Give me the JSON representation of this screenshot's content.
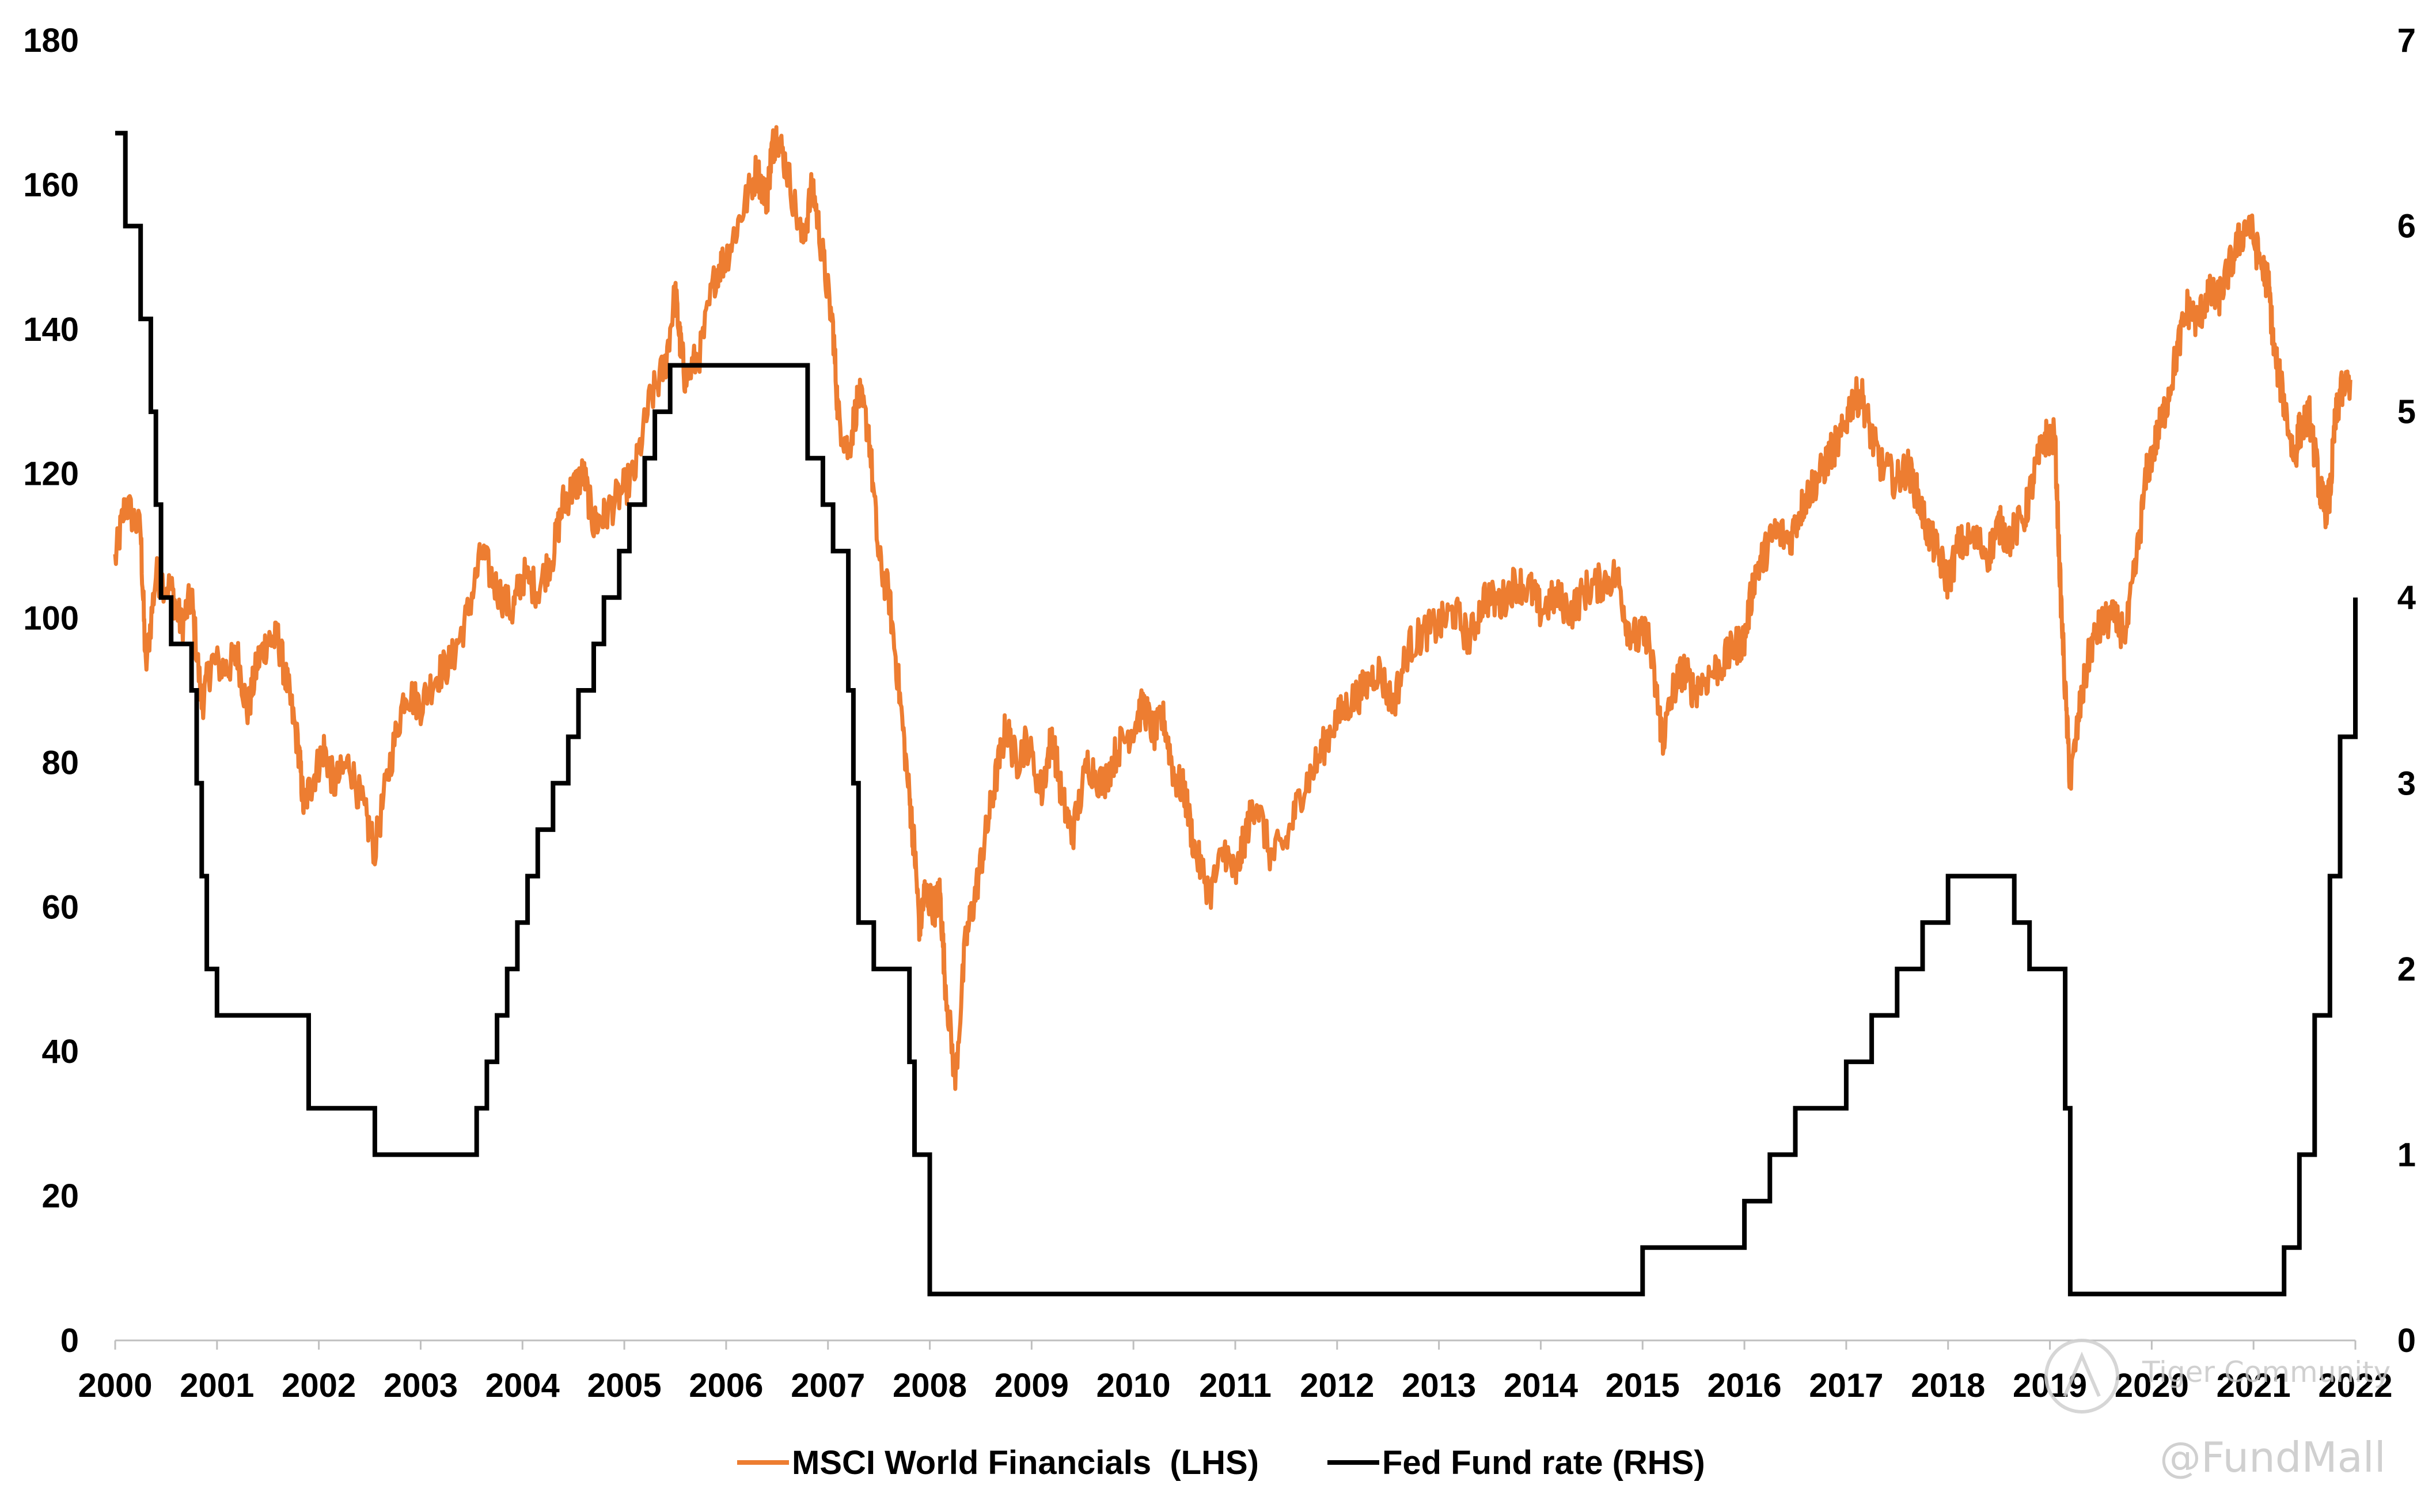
{
  "chart_data": {
    "type": "line",
    "title": "",
    "xlabel": "",
    "ylabel_left": "",
    "ylabel_right": "",
    "x_ticks": [
      "2000",
      "2001",
      "2002",
      "2003",
      "2004",
      "2005",
      "2006",
      "2007",
      "2008",
      "2009",
      "2010",
      "2011",
      "2012",
      "2013",
      "2014",
      "2015",
      "2016",
      "2017",
      "2018",
      "2019",
      "2020",
      "2021",
      "2022"
    ],
    "y_left_ticks": [
      0,
      20,
      40,
      60,
      80,
      100,
      120,
      140,
      160,
      180
    ],
    "y_right_ticks": [
      0,
      1,
      2,
      3,
      4,
      5,
      6,
      7
    ],
    "ylim_left": [
      0,
      180
    ],
    "ylim_right": [
      0,
      7
    ],
    "xlim": [
      2000,
      2022
    ],
    "series": [
      {
        "name": "MSCI World Financials  (LHS)",
        "axis": "left",
        "color": "#ED7D31",
        "points": [
          [
            2000.0,
            108
          ],
          [
            2000.1,
            116
          ],
          [
            2000.25,
            112
          ],
          [
            2000.3,
            93
          ],
          [
            2000.4,
            106
          ],
          [
            2000.55,
            104
          ],
          [
            2000.65,
            99
          ],
          [
            2000.75,
            103
          ],
          [
            2000.85,
            88
          ],
          [
            2000.95,
            94
          ],
          [
            2001.1,
            93
          ],
          [
            2001.2,
            95
          ],
          [
            2001.3,
            87
          ],
          [
            2001.4,
            94
          ],
          [
            2001.5,
            97
          ],
          [
            2001.6,
            97
          ],
          [
            2001.7,
            90
          ],
          [
            2001.8,
            82
          ],
          [
            2001.85,
            74
          ],
          [
            2001.95,
            78
          ],
          [
            2002.05,
            82
          ],
          [
            2002.15,
            77
          ],
          [
            2002.3,
            80
          ],
          [
            2002.45,
            73
          ],
          [
            2002.55,
            68
          ],
          [
            2002.7,
            80
          ],
          [
            2002.85,
            90
          ],
          [
            2003.0,
            88
          ],
          [
            2003.15,
            92
          ],
          [
            2003.3,
            94
          ],
          [
            2003.45,
            100
          ],
          [
            2003.6,
            109
          ],
          [
            2003.75,
            104
          ],
          [
            2003.9,
            101
          ],
          [
            2004.0,
            106
          ],
          [
            2004.15,
            104
          ],
          [
            2004.3,
            109
          ],
          [
            2004.4,
            116
          ],
          [
            2004.5,
            118
          ],
          [
            2004.6,
            120
          ],
          [
            2004.7,
            113
          ],
          [
            2004.8,
            114
          ],
          [
            2004.95,
            117
          ],
          [
            2005.1,
            120
          ],
          [
            2005.25,
            130
          ],
          [
            2005.4,
            135
          ],
          [
            2005.5,
            145
          ],
          [
            2005.55,
            138
          ],
          [
            2005.6,
            133
          ],
          [
            2005.75,
            137
          ],
          [
            2005.9,
            148
          ],
          [
            2006.0,
            150
          ],
          [
            2006.15,
            156
          ],
          [
            2006.3,
            162
          ],
          [
            2006.4,
            158
          ],
          [
            2006.45,
            165
          ],
          [
            2006.5,
            167
          ],
          [
            2006.6,
            162
          ],
          [
            2006.75,
            152
          ],
          [
            2006.85,
            160
          ],
          [
            2006.95,
            150
          ],
          [
            2007.05,
            140
          ],
          [
            2007.1,
            128
          ],
          [
            2007.2,
            123
          ],
          [
            2007.3,
            131
          ],
          [
            2007.4,
            126
          ],
          [
            2007.5,
            108
          ],
          [
            2007.6,
            103
          ],
          [
            2007.7,
            90
          ],
          [
            2007.8,
            75
          ],
          [
            2007.85,
            68
          ],
          [
            2007.9,
            57
          ],
          [
            2007.95,
            62
          ],
          [
            2008.05,
            60
          ],
          [
            2008.1,
            62
          ],
          [
            2008.15,
            50
          ],
          [
            2008.25,
            36
          ],
          [
            2008.35,
            55
          ],
          [
            2008.45,
            62
          ],
          [
            2008.55,
            70
          ],
          [
            2008.65,
            78
          ],
          [
            2008.75,
            85
          ],
          [
            2008.85,
            80
          ],
          [
            2008.95,
            83
          ],
          [
            2009.1,
            76
          ],
          [
            2009.2,
            84
          ],
          [
            2009.3,
            75
          ],
          [
            2009.4,
            70
          ],
          [
            2009.55,
            80
          ],
          [
            2009.7,
            77
          ],
          [
            2009.85,
            82
          ],
          [
            2010.0,
            85
          ],
          [
            2010.1,
            88
          ],
          [
            2010.2,
            84
          ],
          [
            2010.3,
            86
          ],
          [
            2010.4,
            78
          ],
          [
            2010.5,
            76
          ],
          [
            2010.6,
            68
          ],
          [
            2010.75,
            62
          ],
          [
            2010.9,
            68
          ],
          [
            2011.0,
            64
          ],
          [
            2011.1,
            70
          ],
          [
            2011.2,
            75
          ],
          [
            2011.35,
            67
          ],
          [
            2011.5,
            69
          ],
          [
            2011.65,
            76
          ],
          [
            2011.8,
            80
          ],
          [
            2011.95,
            85
          ],
          [
            2012.1,
            88
          ],
          [
            2012.25,
            90
          ],
          [
            2012.4,
            93
          ],
          [
            2012.55,
            88
          ],
          [
            2012.7,
            96
          ],
          [
            2012.85,
            98
          ],
          [
            2013.0,
            99
          ],
          [
            2013.15,
            101
          ],
          [
            2013.3,
            97
          ],
          [
            2013.45,
            103
          ],
          [
            2013.6,
            102
          ],
          [
            2013.75,
            105
          ],
          [
            2013.9,
            104
          ],
          [
            2014.0,
            101
          ],
          [
            2014.15,
            103
          ],
          [
            2014.3,
            101
          ],
          [
            2014.45,
            104
          ],
          [
            2014.6,
            105
          ],
          [
            2014.75,
            106
          ],
          [
            2014.85,
            99
          ],
          [
            2014.95,
            97
          ],
          [
            2015.05,
            98
          ],
          [
            2015.15,
            88
          ],
          [
            2015.2,
            83
          ],
          [
            2015.3,
            90
          ],
          [
            2015.4,
            93
          ],
          [
            2015.5,
            90
          ],
          [
            2015.65,
            92
          ],
          [
            2015.8,
            94
          ],
          [
            2015.9,
            96
          ],
          [
            2016.0,
            97
          ],
          [
            2016.1,
            106
          ],
          [
            2016.2,
            109
          ],
          [
            2016.3,
            112
          ],
          [
            2016.45,
            111
          ],
          [
            2016.55,
            115
          ],
          [
            2016.65,
            118
          ],
          [
            2016.75,
            120
          ],
          [
            2016.85,
            123
          ],
          [
            2016.95,
            125
          ],
          [
            2017.05,
            130
          ],
          [
            2017.15,
            131
          ],
          [
            2017.25,
            125
          ],
          [
            2017.35,
            121
          ],
          [
            2017.5,
            119
          ],
          [
            2017.6,
            121
          ],
          [
            2017.7,
            117
          ],
          [
            2017.8,
            112
          ],
          [
            2017.9,
            109
          ],
          [
            2018.0,
            105
          ],
          [
            2018.1,
            110
          ],
          [
            2018.25,
            111
          ],
          [
            2018.4,
            109
          ],
          [
            2018.5,
            113
          ],
          [
            2018.6,
            111
          ],
          [
            2018.75,
            114
          ],
          [
            2018.85,
            120
          ],
          [
            2018.95,
            125
          ],
          [
            2019.05,
            125
          ],
          [
            2019.1,
            105
          ],
          [
            2019.15,
            90
          ],
          [
            2019.2,
            77
          ],
          [
            2019.3,
            88
          ],
          [
            2019.4,
            96
          ],
          [
            2019.5,
            99
          ],
          [
            2019.6,
            100
          ],
          [
            2019.75,
            98
          ],
          [
            2019.85,
            108
          ],
          [
            2019.95,
            120
          ],
          [
            2020.05,
            125
          ],
          [
            2020.15,
            130
          ],
          [
            2020.25,
            137
          ],
          [
            2020.35,
            143
          ],
          [
            2020.45,
            141
          ],
          [
            2020.55,
            145
          ],
          [
            2020.65,
            144
          ],
          [
            2020.75,
            148
          ],
          [
            2020.85,
            152
          ],
          [
            2020.95,
            155
          ],
          [
            2021.05,
            150
          ],
          [
            2021.15,
            146
          ],
          [
            2021.2,
            137
          ],
          [
            2021.3,
            130
          ],
          [
            2021.4,
            122
          ],
          [
            2021.45,
            126
          ],
          [
            2021.55,
            128
          ],
          [
            2021.65,
            118
          ],
          [
            2021.7,
            115
          ],
          [
            2021.75,
            117
          ],
          [
            2021.8,
            127
          ],
          [
            2021.85,
            131
          ],
          [
            2021.95,
            133
          ]
        ]
      },
      {
        "name": "Fed Fund rate (RHS)",
        "axis": "right",
        "color": "#000000",
        "steps": [
          [
            2000.0,
            6.5
          ],
          [
            2000.1,
            6.0
          ],
          [
            2000.25,
            5.5
          ],
          [
            2000.35,
            5.0
          ],
          [
            2000.4,
            4.5
          ],
          [
            2000.45,
            4.0
          ],
          [
            2000.55,
            3.75
          ],
          [
            2000.75,
            3.5
          ],
          [
            2000.8,
            3.0
          ],
          [
            2000.85,
            2.5
          ],
          [
            2000.9,
            2.0
          ],
          [
            2001.0,
            1.75
          ],
          [
            2001.9,
            1.25
          ],
          [
            2002.55,
            1.0
          ],
          [
            2003.55,
            1.25
          ],
          [
            2003.65,
            1.5
          ],
          [
            2003.75,
            1.75
          ],
          [
            2003.85,
            2.0
          ],
          [
            2003.95,
            2.25
          ],
          [
            2004.05,
            2.5
          ],
          [
            2004.15,
            2.75
          ],
          [
            2004.3,
            3.0
          ],
          [
            2004.45,
            3.25
          ],
          [
            2004.55,
            3.5
          ],
          [
            2004.7,
            3.75
          ],
          [
            2004.8,
            4.0
          ],
          [
            2004.95,
            4.25
          ],
          [
            2005.05,
            4.5
          ],
          [
            2005.2,
            4.75
          ],
          [
            2005.3,
            5.0
          ],
          [
            2005.45,
            5.25
          ],
          [
            2006.8,
            4.75
          ],
          [
            2006.95,
            4.5
          ],
          [
            2007.05,
            4.25
          ],
          [
            2007.2,
            3.5
          ],
          [
            2007.25,
            3.0
          ],
          [
            2007.3,
            2.25
          ],
          [
            2007.45,
            2.0
          ],
          [
            2007.8,
            1.5
          ],
          [
            2007.85,
            1.0
          ],
          [
            2008.0,
            0.25
          ],
          [
            2015.0,
            0.5
          ],
          [
            2016.0,
            0.75
          ],
          [
            2016.25,
            1.0
          ],
          [
            2016.5,
            1.25
          ],
          [
            2017.0,
            1.5
          ],
          [
            2017.25,
            1.75
          ],
          [
            2017.5,
            2.0
          ],
          [
            2017.75,
            2.25
          ],
          [
            2018.0,
            2.5
          ],
          [
            2018.65,
            2.25
          ],
          [
            2018.8,
            2.0
          ],
          [
            2019.15,
            1.25
          ],
          [
            2019.2,
            0.25
          ],
          [
            2021.3,
            0.5
          ],
          [
            2021.45,
            1.0
          ],
          [
            2021.6,
            1.75
          ],
          [
            2021.75,
            2.5
          ],
          [
            2021.85,
            3.25
          ],
          [
            2022.0,
            4.0
          ]
        ]
      }
    ],
    "legend": {
      "position": "bottom-center"
    }
  },
  "watermarks": {
    "community": "Tiger Community",
    "handle": "@FundMall"
  }
}
